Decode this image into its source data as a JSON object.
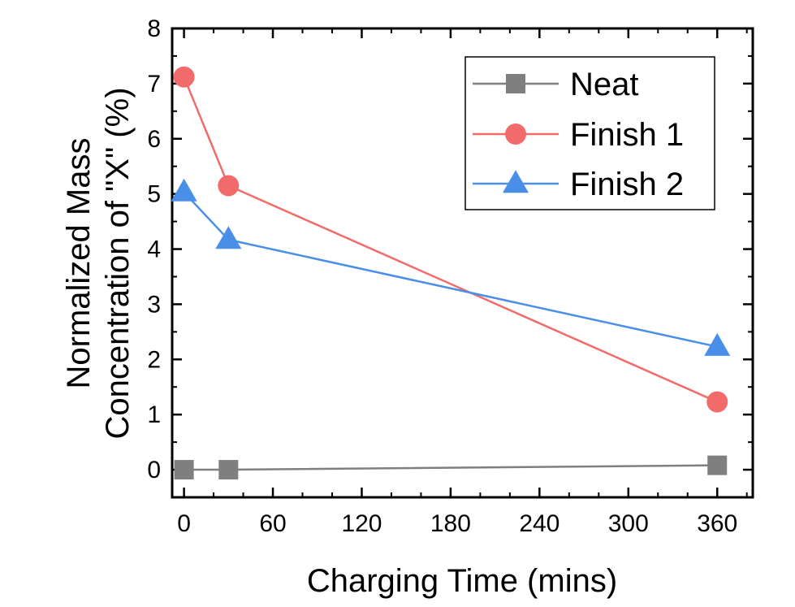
{
  "chart_data": {
    "type": "line",
    "xlabel": "Charging Time (mins)",
    "ylabel_lines": [
      "Normalized Mass",
      "Concentration of \"X\" (%)"
    ],
    "xlim": [
      -8,
      384
    ],
    "ylim": [
      -0.5,
      8
    ],
    "xticks": [
      0,
      60,
      120,
      180,
      240,
      300,
      360
    ],
    "yticks": [
      0,
      1,
      2,
      3,
      4,
      5,
      6,
      7,
      8
    ],
    "legend_position": "top-right",
    "grid": false,
    "series": [
      {
        "name": "Neat",
        "marker": "square",
        "color": "#7f7f7f",
        "x": [
          0,
          30,
          360
        ],
        "y": [
          0.0,
          0.0,
          0.08
        ]
      },
      {
        "name": "Finish 1",
        "marker": "circle",
        "color": "#f26b6b",
        "x": [
          0,
          30,
          360
        ],
        "y": [
          7.12,
          5.15,
          1.23
        ]
      },
      {
        "name": "Finish 2",
        "marker": "triangle",
        "color": "#4a8fe7",
        "x": [
          0,
          30,
          360
        ],
        "y": [
          5.03,
          4.17,
          2.23
        ]
      }
    ]
  }
}
